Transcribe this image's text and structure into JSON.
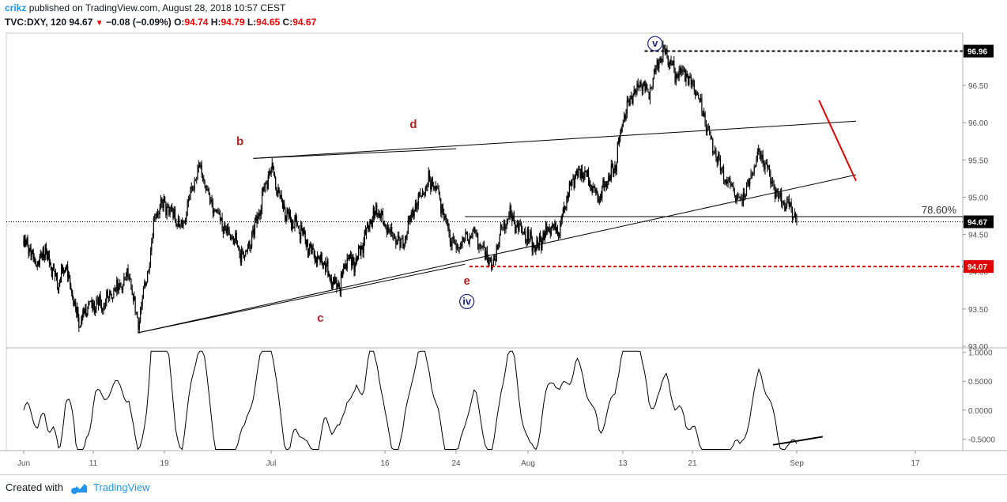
{
  "header": {
    "author": "crikz",
    "published_text": " published on TradingView.com, August 28, 2018 10:57 CEST",
    "symbol": "TVC:DXY, 120",
    "last": "94.67",
    "change": "−0.08 (−0.09%)",
    "o_label": "O:",
    "o_value": "94.74",
    "h_label": "H:",
    "h_value": "94.79",
    "l_label": "L:",
    "l_value": "94.65",
    "c_label": "C:",
    "c_value": "94.67"
  },
  "footer": {
    "created_with": "Created with",
    "brand": "TradingView"
  },
  "colors": {
    "bull": "#000000",
    "bear": "#000000",
    "red": "#e00000",
    "blue_wave": "#1a237e",
    "red_wave": "#b22222",
    "tag_dark": "#000000",
    "tag_red": "#e00000"
  },
  "chart_data": [
    {
      "type": "candlestick",
      "symbol": "TVC:DXY",
      "interval": "120",
      "y_axis": {
        "side": "right",
        "ylim": [
          93.0,
          97.2
        ],
        "ticks": [
          93.0,
          93.5,
          94.0,
          94.5,
          95.0,
          95.5,
          96.0,
          96.5,
          97.0
        ],
        "tick_labels": [
          "93.00",
          "93.50",
          "94.00",
          "94.50",
          "95.00",
          "95.50",
          "96.00",
          "96.50",
          "97.00"
        ]
      },
      "x_axis": {
        "range_days": [
          0,
          81
        ],
        "ticks": [
          {
            "label": "Jun",
            "day": 0
          },
          {
            "label": "11",
            "day": 10
          },
          {
            "label": "19",
            "day": 18
          },
          {
            "label": "Jul",
            "day": 30
          },
          {
            "label": "16",
            "day": 45
          },
          {
            "label": "24",
            "day": 53
          },
          {
            "label": "Aug",
            "day": 61
          },
          {
            "label": "13",
            "day": 73
          },
          {
            "label": "21",
            "day": 81
          },
          {
            "label": "Sep",
            "day": 92
          },
          {
            "label": "17",
            "day": 108
          }
        ]
      },
      "price_path": [
        [
          0,
          94.42
        ],
        [
          2,
          94.1
        ],
        [
          3,
          94.3
        ],
        [
          5,
          93.82
        ],
        [
          6,
          94.08
        ],
        [
          8,
          93.3
        ],
        [
          9,
          93.55
        ],
        [
          11,
          93.55
        ],
        [
          13,
          93.8
        ],
        [
          14,
          93.95
        ],
        [
          15,
          93.3
        ],
        [
          16,
          93.9
        ],
        [
          17,
          94.8
        ],
        [
          18,
          94.9
        ],
        [
          20,
          94.6
        ],
        [
          21,
          95.05
        ],
        [
          22,
          95.4
        ],
        [
          23,
          95.0
        ],
        [
          24,
          94.75
        ],
        [
          25,
          94.55
        ],
        [
          27,
          94.2
        ],
        [
          28,
          94.5
        ],
        [
          29,
          95.0
        ],
        [
          30,
          95.45
        ],
        [
          31,
          95.05
        ],
        [
          32,
          94.75
        ],
        [
          34,
          94.55
        ],
        [
          35,
          94.3
        ],
        [
          37,
          94.1
        ],
        [
          38,
          93.85
        ],
        [
          39,
          93.8
        ],
        [
          40,
          94.2
        ],
        [
          41,
          94.1
        ],
        [
          43,
          94.65
        ],
        [
          44,
          94.85
        ],
        [
          45,
          94.6
        ],
        [
          46,
          94.45
        ],
        [
          47,
          94.35
        ],
        [
          48,
          94.75
        ],
        [
          49,
          95.0
        ],
        [
          50,
          95.25
        ],
        [
          51,
          95.05
        ],
        [
          52,
          94.6
        ],
        [
          53,
          94.3
        ],
        [
          55,
          94.55
        ],
        [
          56,
          94.3
        ],
        [
          57,
          94.05
        ],
        [
          58,
          94.55
        ],
        [
          59,
          94.75
        ],
        [
          60,
          94.6
        ],
        [
          61,
          94.45
        ],
        [
          62,
          94.3
        ],
        [
          63,
          94.5
        ],
        [
          65,
          94.6
        ],
        [
          66,
          95.0
        ],
        [
          67,
          95.3
        ],
        [
          68,
          95.35
        ],
        [
          69,
          95.15
        ],
        [
          70,
          95.0
        ],
        [
          71,
          95.2
        ],
        [
          72,
          95.4
        ],
        [
          73,
          96.05
        ],
        [
          74,
          96.35
        ],
        [
          75,
          96.5
        ],
        [
          76,
          96.4
        ],
        [
          77,
          96.8
        ],
        [
          78,
          96.96
        ],
        [
          79,
          96.65
        ],
        [
          80,
          96.7
        ],
        [
          81,
          96.5
        ],
        [
          82,
          96.2
        ],
        [
          83,
          95.75
        ],
        [
          84,
          95.4
        ],
        [
          85,
          95.15
        ],
        [
          86,
          94.95
        ],
        [
          87,
          95.2
        ],
        [
          88,
          95.6
        ],
        [
          89,
          95.35
        ],
        [
          90,
          95.0
        ],
        [
          91,
          94.9
        ],
        [
          92,
          94.67
        ]
      ],
      "oscillator": {
        "axis_ticks": [
          1.0,
          0.5,
          0.0,
          -0.5
        ],
        "axis_labels": [
          "1.0000",
          "0.5000",
          "0.0000",
          "-0.5000"
        ],
        "ylim": [
          -0.7,
          1.05
        ]
      },
      "horizontal_levels": [
        {
          "value": 96.96,
          "style": "dashed",
          "color": "#000000",
          "label": "96.96"
        },
        {
          "value": 94.07,
          "style": "dashed",
          "color": "#e00000",
          "label": "94.07"
        },
        {
          "value": 94.67,
          "style": "dotted",
          "color": "#000000",
          "label": "94.67"
        }
      ],
      "fib_level": {
        "label": "78.60%",
        "value": 94.74
      },
      "wave_labels": [
        {
          "text": "b",
          "style": "red"
        },
        {
          "text": "c",
          "style": "red"
        },
        {
          "text": "d",
          "style": "red"
        },
        {
          "text": "e",
          "style": "red"
        },
        {
          "text": "iv",
          "style": "blue"
        },
        {
          "text": "v",
          "style": "blue"
        }
      ],
      "trendlines": [
        {
          "name": "triangle-upper",
          "from": [
            28,
            95.52
          ],
          "to": [
            53,
            95.65
          ],
          "color": "#000000"
        },
        {
          "name": "triangle-lower",
          "from": [
            15,
            93.18
          ],
          "to": [
            54,
            94.1
          ],
          "color": "#000000"
        },
        {
          "name": "upper-channel",
          "from": [
            28,
            95.52
          ],
          "to": [
            100,
            96.02
          ],
          "color": "#000000"
        },
        {
          "name": "lower-channel",
          "from": [
            15,
            93.18
          ],
          "to": [
            100,
            95.3
          ],
          "color": "#000000"
        },
        {
          "name": "red-resistance",
          "from": [
            95,
            96.3
          ],
          "to": [
            100,
            95.22
          ],
          "color": "#e00000"
        }
      ]
    }
  ]
}
